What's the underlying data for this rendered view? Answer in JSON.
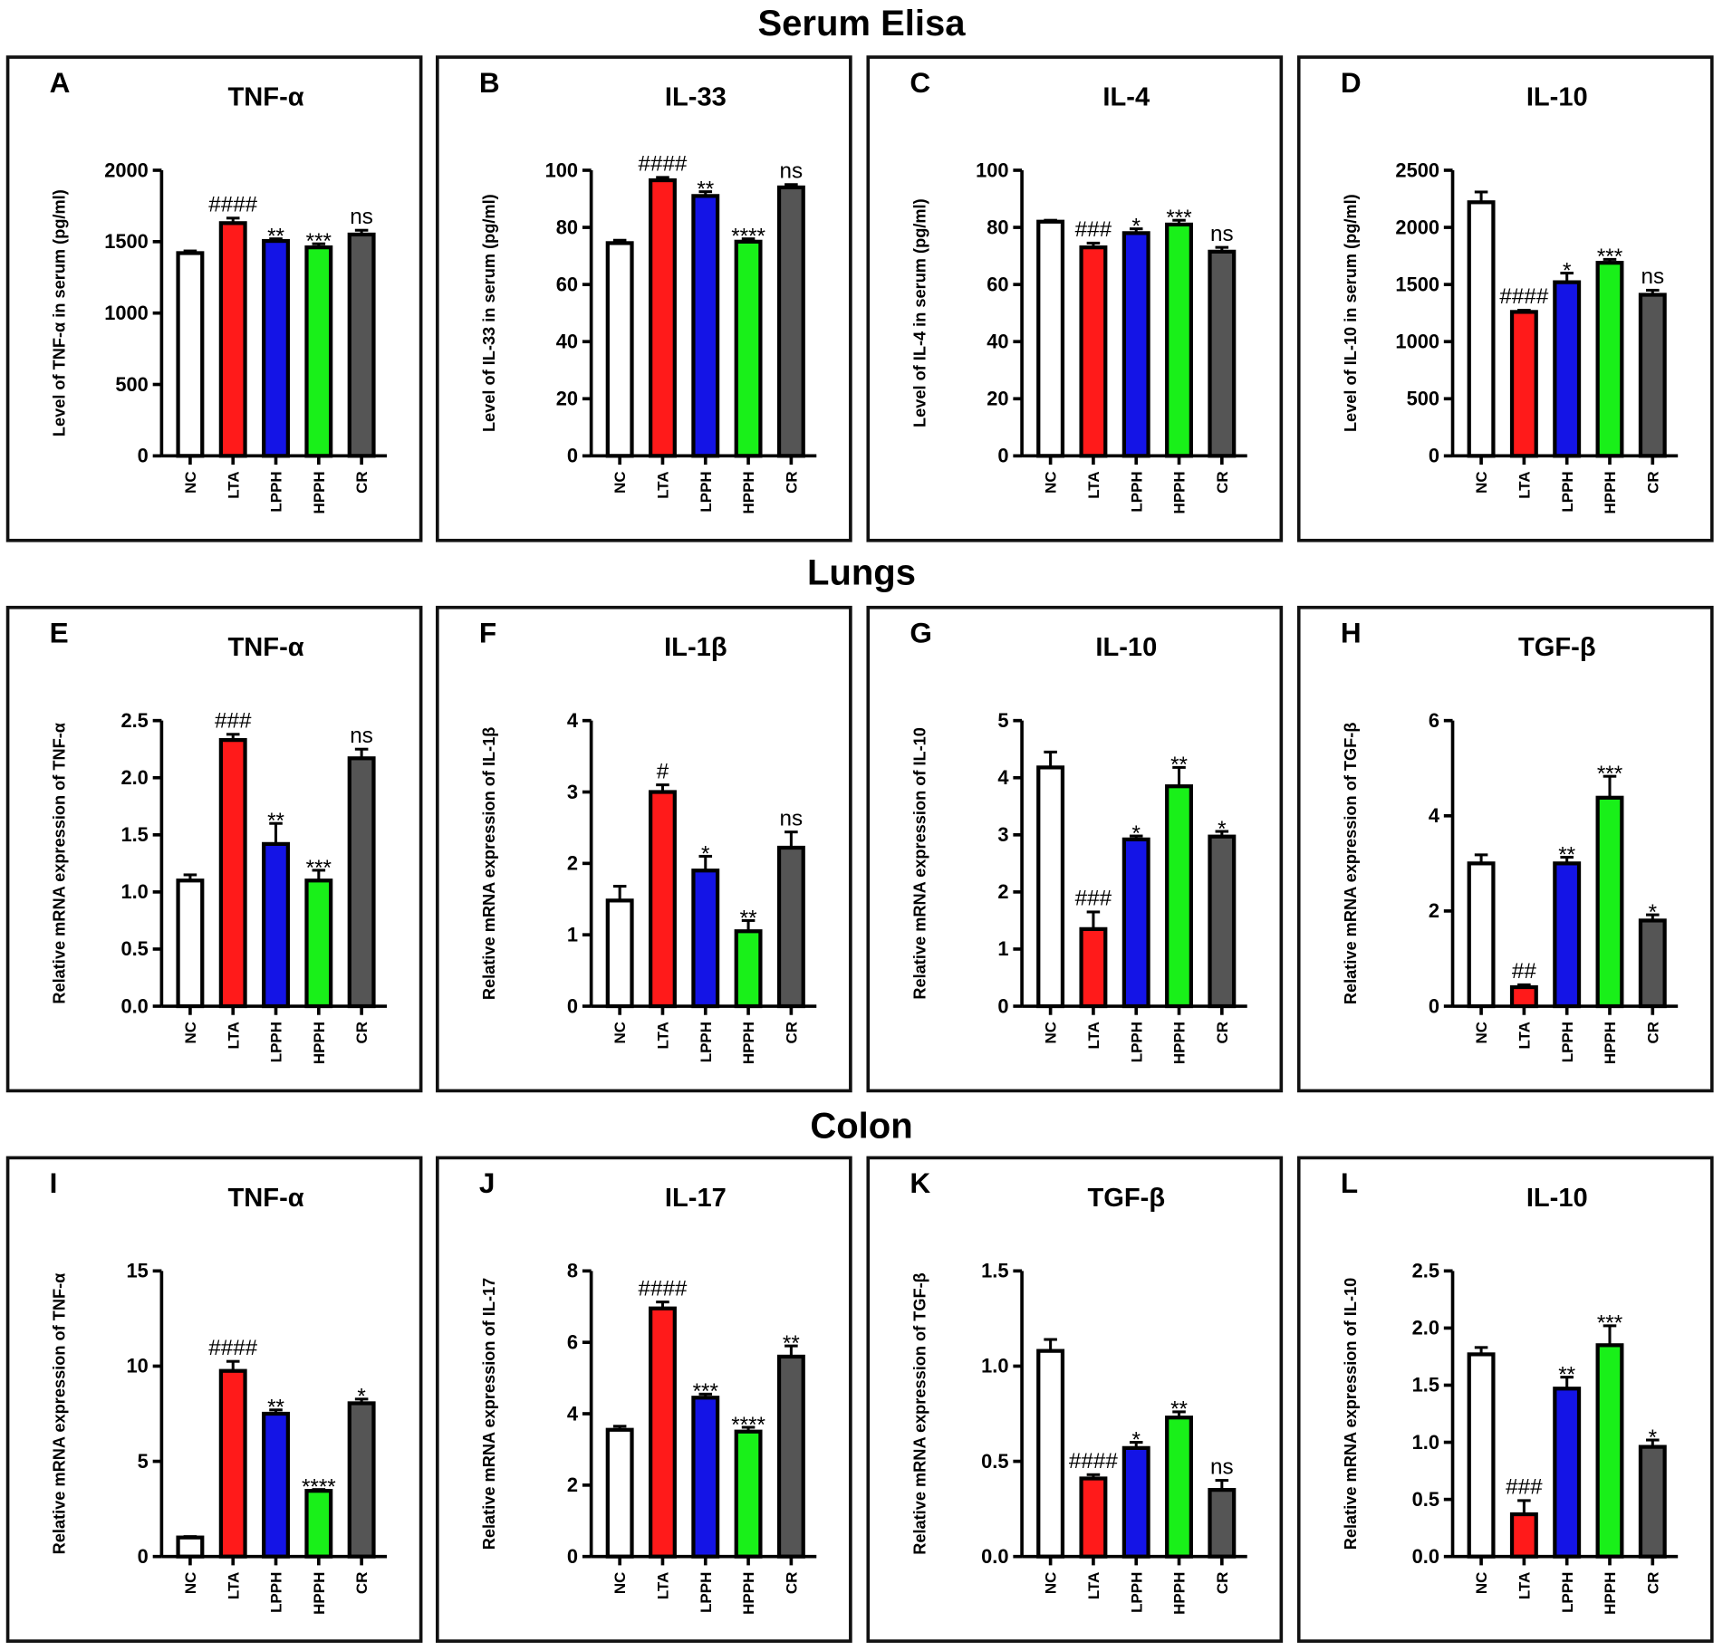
{
  "sections": [
    "Serum Elisa",
    "Lungs",
    "Colon"
  ],
  "colors": {
    "NC": "#ffffff",
    "LTA": "#ff1a1a",
    "LPPH": "#1414e6",
    "HPPH": "#19f019",
    "CR": "#555555"
  },
  "chart_data": [
    {
      "type": "bar",
      "letter": "A",
      "title": "TNF-α",
      "ylabel": "Level of TNF-α in serum (pg/ml)",
      "categories": [
        "NC",
        "LTA",
        "LPPH",
        "HPPH",
        "CR"
      ],
      "values": [
        1420,
        1630,
        1505,
        1460,
        1550
      ],
      "errors": [
        15,
        35,
        15,
        25,
        30
      ],
      "annotations": [
        "",
        "####",
        "**",
        "***",
        "ns"
      ],
      "ylim": [
        0,
        2000
      ],
      "yticks": [
        "0",
        "500",
        "1000",
        "1500",
        "2000"
      ]
    },
    {
      "type": "bar",
      "letter": "B",
      "title": "IL-33",
      "ylabel": "Level of IL-33 in serum (pg/ml)",
      "categories": [
        "NC",
        "LTA",
        "LPPH",
        "HPPH",
        "CR"
      ],
      "values": [
        74.5,
        96.5,
        91,
        75,
        94
      ],
      "errors": [
        1,
        1,
        1.5,
        1,
        1
      ],
      "annotations": [
        "",
        "####",
        "**",
        "****",
        "ns"
      ],
      "ylim": [
        0,
        100
      ],
      "yticks": [
        "0",
        "20",
        "40",
        "60",
        "80",
        "100"
      ]
    },
    {
      "type": "bar",
      "letter": "C",
      "title": "IL-4",
      "ylabel": "Level of IL-4 in serum (pg/ml)",
      "categories": [
        "NC",
        "LTA",
        "LPPH",
        "HPPH",
        "CR"
      ],
      "values": [
        82,
        73,
        78,
        81,
        71.5
      ],
      "errors": [
        0.5,
        1.5,
        1.5,
        1.5,
        1.5
      ],
      "annotations": [
        "",
        "###",
        "*",
        "***",
        "ns"
      ],
      "ylim": [
        0,
        100
      ],
      "yticks": [
        "0",
        "20",
        "40",
        "60",
        "80",
        "100"
      ]
    },
    {
      "type": "bar",
      "letter": "D",
      "title": "IL-10",
      "ylabel": "Level of IL-10 in serum (pg/ml)",
      "categories": [
        "NC",
        "LTA",
        "LPPH",
        "HPPH",
        "CR"
      ],
      "values": [
        2220,
        1260,
        1520,
        1690,
        1410
      ],
      "errors": [
        90,
        15,
        80,
        30,
        40
      ],
      "annotations": [
        "",
        "####",
        "*",
        "***",
        "ns"
      ],
      "ylim": [
        0,
        2500
      ],
      "yticks": [
        "0",
        "500",
        "1000",
        "1500",
        "2000",
        "2500"
      ]
    },
    {
      "type": "bar",
      "letter": "E",
      "title": "TNF-α",
      "ylabel": "Relative mRNA expression of TNF-α",
      "categories": [
        "NC",
        "LTA",
        "LPPH",
        "HPPH",
        "CR"
      ],
      "values": [
        1.1,
        2.33,
        1.42,
        1.1,
        2.17
      ],
      "errors": [
        0.05,
        0.05,
        0.18,
        0.09,
        0.08
      ],
      "annotations": [
        "",
        "###",
        "**",
        "***",
        "ns"
      ],
      "ylim": [
        0,
        2.5
      ],
      "yticks": [
        "0.0",
        "0.5",
        "1.0",
        "1.5",
        "2.0",
        "2.5"
      ]
    },
    {
      "type": "bar",
      "letter": "F",
      "title": "IL-1β",
      "ylabel": "Relative mRNA expression of IL-1β",
      "categories": [
        "NC",
        "LTA",
        "LPPH",
        "HPPH",
        "CR"
      ],
      "values": [
        1.48,
        3.0,
        1.9,
        1.05,
        2.22
      ],
      "errors": [
        0.2,
        0.1,
        0.2,
        0.15,
        0.22
      ],
      "annotations": [
        "",
        "#",
        "*",
        "**",
        "ns"
      ],
      "ylim": [
        0,
        4
      ],
      "yticks": [
        "0",
        "1",
        "2",
        "3",
        "4"
      ]
    },
    {
      "type": "bar",
      "letter": "G",
      "title": "IL-10",
      "ylabel": "Relative mRNA expression of IL-10",
      "categories": [
        "NC",
        "LTA",
        "LPPH",
        "HPPH",
        "CR"
      ],
      "values": [
        4.18,
        1.35,
        2.92,
        3.85,
        2.97
      ],
      "errors": [
        0.27,
        0.3,
        0.06,
        0.33,
        0.09
      ],
      "annotations": [
        "",
        "###",
        "*",
        "**",
        "*"
      ],
      "ylim": [
        0,
        5
      ],
      "yticks": [
        "0",
        "1",
        "2",
        "3",
        "4",
        "5"
      ]
    },
    {
      "type": "bar",
      "letter": "H",
      "title": "TGF-β",
      "ylabel": "Relative mRNA expression of TGF-β",
      "categories": [
        "NC",
        "LTA",
        "LPPH",
        "HPPH",
        "CR"
      ],
      "values": [
        3.0,
        0.4,
        3.0,
        4.38,
        1.8
      ],
      "errors": [
        0.18,
        0.05,
        0.13,
        0.45,
        0.12
      ],
      "annotations": [
        "",
        "##",
        "**",
        "***",
        "*"
      ],
      "ylim": [
        0,
        6
      ],
      "yticks": [
        "0",
        "2",
        "4",
        "6"
      ]
    },
    {
      "type": "bar",
      "letter": "I",
      "title": "TNF-α",
      "ylabel": "Relative mRNA expression of TNF-α",
      "categories": [
        "NC",
        "LTA",
        "LPPH",
        "HPPH",
        "CR"
      ],
      "values": [
        1.0,
        9.75,
        7.5,
        3.45,
        8.05
      ],
      "errors": [
        0.05,
        0.5,
        0.2,
        0.07,
        0.22
      ],
      "annotations": [
        "",
        "####",
        "**",
        "****",
        "*"
      ],
      "ylim": [
        0,
        15
      ],
      "yticks": [
        "0",
        "5",
        "10",
        "15"
      ]
    },
    {
      "type": "bar",
      "letter": "J",
      "title": "IL-17",
      "ylabel": "Relative mRNA expression of IL-17",
      "categories": [
        "NC",
        "LTA",
        "LPPH",
        "HPPH",
        "CR"
      ],
      "values": [
        3.55,
        6.95,
        4.45,
        3.5,
        5.6
      ],
      "errors": [
        0.1,
        0.18,
        0.1,
        0.12,
        0.3
      ],
      "annotations": [
        "",
        "####",
        "***",
        "****",
        "**"
      ],
      "ylim": [
        0,
        8
      ],
      "yticks": [
        "0",
        "2",
        "4",
        "6",
        "8"
      ]
    },
    {
      "type": "bar",
      "letter": "K",
      "title": "TGF-β",
      "ylabel": "Relative mRNA expression of TGF-β",
      "categories": [
        "NC",
        "LTA",
        "LPPH",
        "HPPH",
        "CR"
      ],
      "values": [
        1.08,
        0.41,
        0.57,
        0.73,
        0.35
      ],
      "errors": [
        0.06,
        0.02,
        0.03,
        0.03,
        0.05
      ],
      "annotations": [
        "",
        "####",
        "*",
        "**",
        "ns"
      ],
      "ylim": [
        0,
        1.5
      ],
      "yticks": [
        "0.0",
        "0.5",
        "1.0",
        "1.5"
      ]
    },
    {
      "type": "bar",
      "letter": "L",
      "title": "IL-10",
      "ylabel": "Relative mRNA expression of IL-10",
      "categories": [
        "NC",
        "LTA",
        "LPPH",
        "HPPH",
        "CR"
      ],
      "values": [
        1.77,
        0.37,
        1.47,
        1.85,
        0.96
      ],
      "errors": [
        0.06,
        0.12,
        0.1,
        0.17,
        0.06
      ],
      "annotations": [
        "",
        "###",
        "**",
        "***",
        "*"
      ],
      "ylim": [
        0,
        2.5
      ],
      "yticks": [
        "0.0",
        "0.5",
        "1.0",
        "1.5",
        "2.0",
        "2.5"
      ]
    }
  ]
}
